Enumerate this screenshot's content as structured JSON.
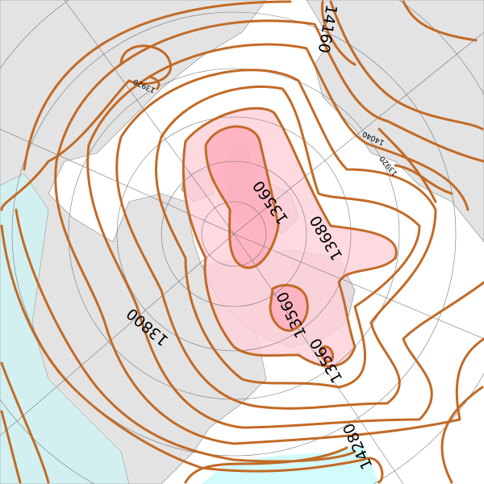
{
  "map": {
    "projection": "polar-stereographic",
    "colors": {
      "contour": "#c26a26",
      "land": "#e3e3e3",
      "ocean": "#ffffff",
      "low_fill_outer": "#ffd6dc",
      "low_fill_inner": "#ffb0c0",
      "high_fill": "#d2fbfb",
      "grid": "#777777"
    },
    "contour_labels": [
      {
        "text": "14160"
      },
      {
        "text": "13920"
      },
      {
        "text": "14040"
      },
      {
        "text": "13920"
      },
      {
        "text": "13560"
      },
      {
        "text": "13680"
      },
      {
        "text": "13800"
      },
      {
        "text": "13560"
      },
      {
        "text": "13560"
      },
      {
        "text": "14280"
      }
    ]
  }
}
